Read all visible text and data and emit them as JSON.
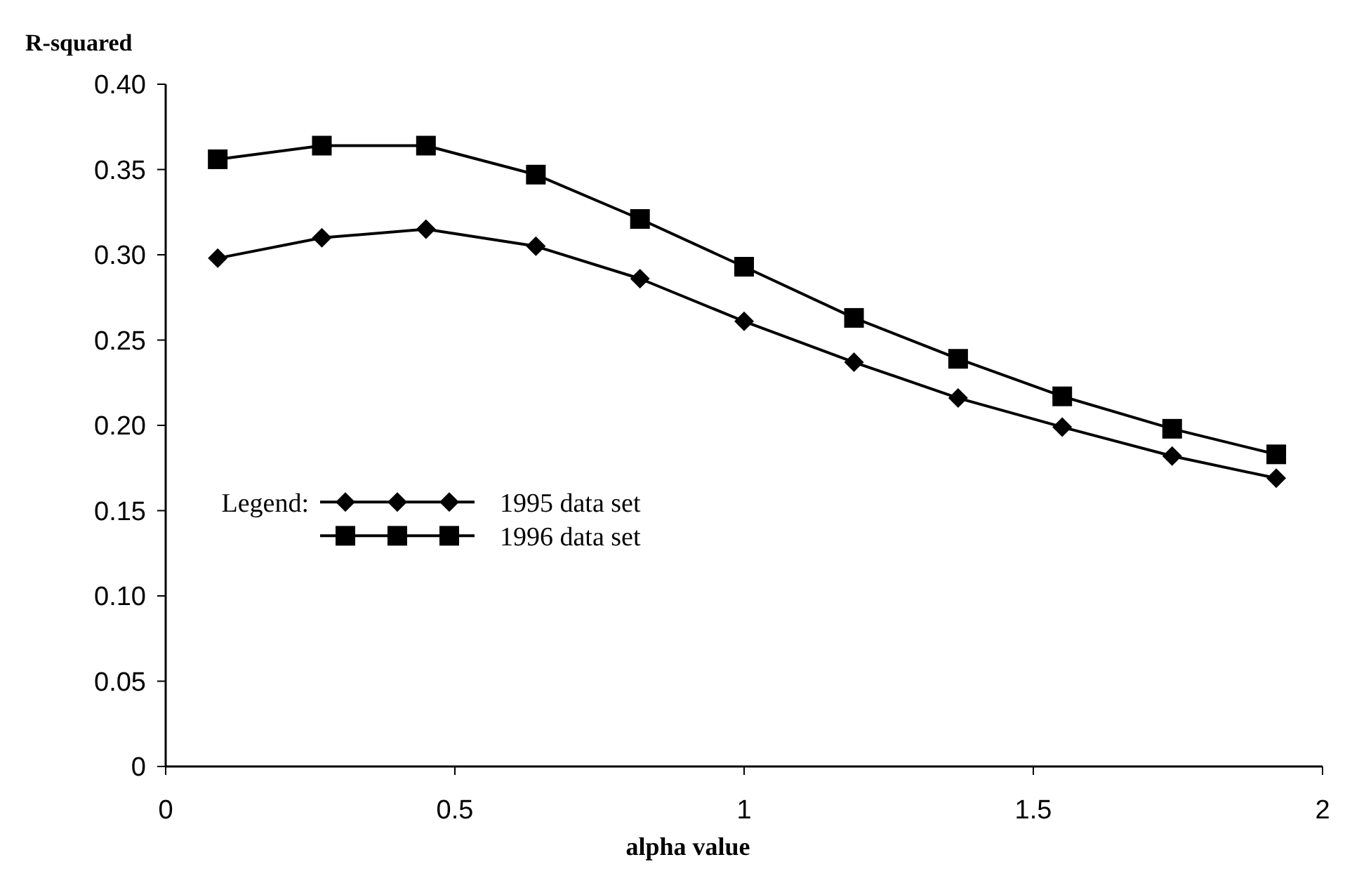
{
  "chart_data": {
    "type": "line",
    "xlabel": "alpha value",
    "ylabel": "R-squared",
    "legend_title": "Legend:",
    "legend": "left",
    "grid": false,
    "x": [
      0.09,
      0.27,
      0.45,
      0.64,
      0.82,
      1.0,
      1.19,
      1.37,
      1.55,
      1.74,
      1.92
    ],
    "xlim": [
      0,
      2
    ],
    "xticks": [
      0,
      0.5,
      1,
      1.5,
      2
    ],
    "ylim": [
      0,
      0.4
    ],
    "yticks": [
      {
        "value": 0,
        "label": "0"
      },
      {
        "value": 0.05,
        "label": "0.05"
      },
      {
        "value": 0.1,
        "label": "0.10"
      },
      {
        "value": 0.15,
        "label": "0.15"
      },
      {
        "value": 0.2,
        "label": "0.20"
      },
      {
        "value": 0.25,
        "label": "0.25"
      },
      {
        "value": 0.3,
        "label": "0.30"
      },
      {
        "value": 0.35,
        "label": "0.35"
      },
      {
        "value": 0.4,
        "label": "0.40"
      }
    ],
    "series": [
      {
        "name": "1995 data set",
        "color": "#000000",
        "marker": "diamond",
        "values": [
          0.298,
          0.31,
          0.315,
          0.305,
          0.286,
          0.261,
          0.237,
          0.216,
          0.199,
          0.182,
          0.169
        ]
      },
      {
        "name": "1996 data set",
        "color": "#000000",
        "marker": "square",
        "values": [
          0.356,
          0.364,
          0.364,
          0.347,
          0.321,
          0.293,
          0.263,
          0.239,
          0.217,
          0.198,
          0.183
        ]
      }
    ]
  }
}
